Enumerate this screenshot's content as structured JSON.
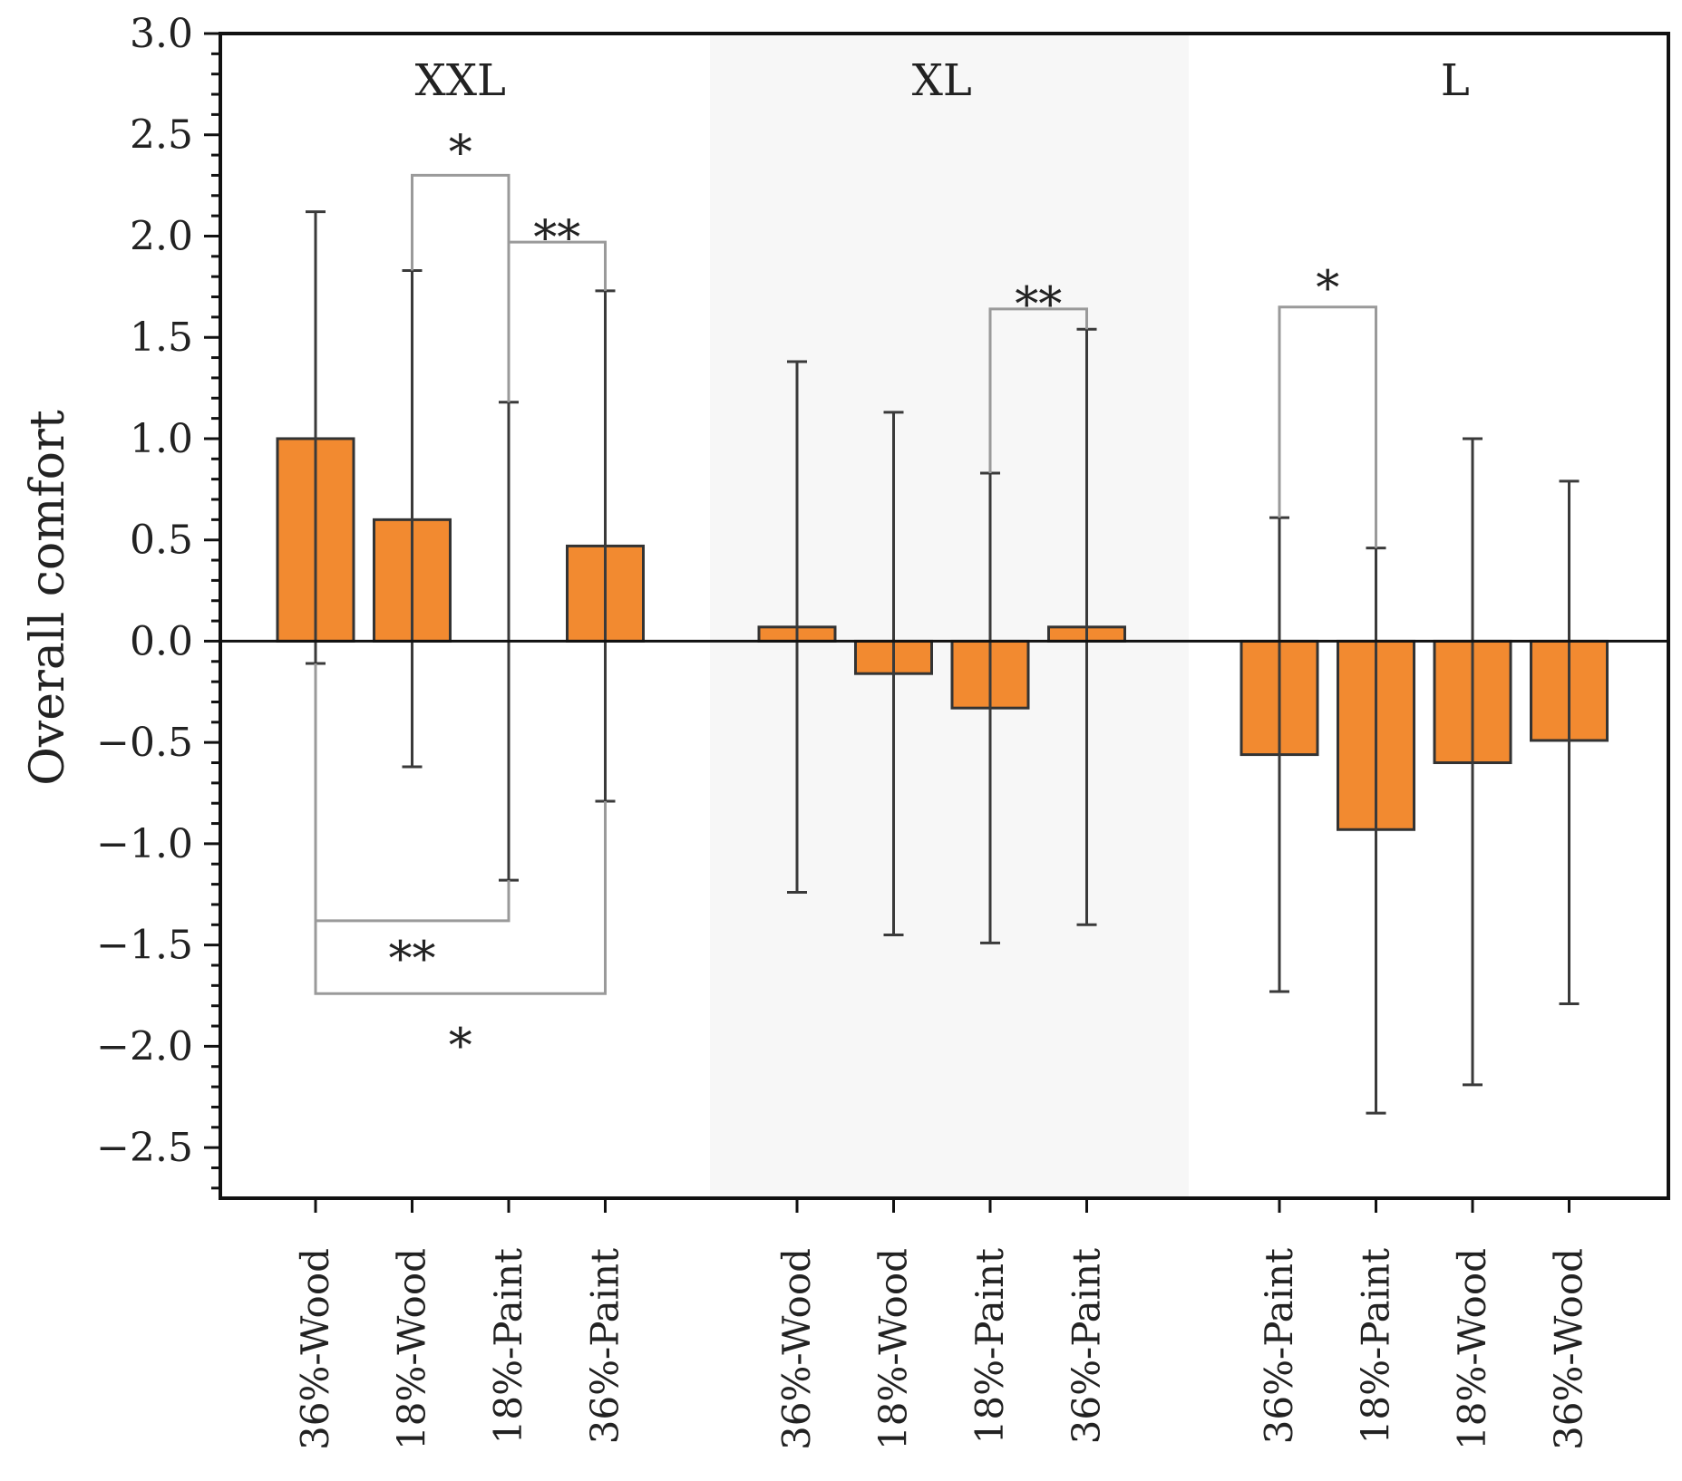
{
  "chart_data": {
    "type": "bar",
    "title": "",
    "xlabel": "",
    "ylabel": "Overall comfort",
    "ylim": [
      -2.75,
      3.0
    ],
    "y_ticks": [
      3.0,
      2.5,
      2.0,
      1.5,
      1.0,
      0.5,
      0.0,
      -0.5,
      -1.0,
      -1.5,
      -2.0,
      -2.5
    ],
    "y_tick_labels": [
      "3.0",
      "2.5",
      "2.0",
      "1.5",
      "1.0",
      "0.5",
      "0.0",
      "−0.5",
      "−1.0",
      "−1.5",
      "−2.0",
      "−2.5"
    ],
    "bar_color": "#f28a30",
    "bar_edge_color": "#333333",
    "shade_color": "#f7f7f7",
    "groups": [
      {
        "name": "XXL",
        "shaded": false,
        "categories": [
          "36%-Wood",
          "18%-Wood",
          "18%-Paint",
          "36%-Paint"
        ],
        "values": [
          1.0,
          0.6,
          0.0,
          0.47
        ],
        "err_low": [
          -0.11,
          -0.62,
          -1.18,
          -0.79
        ],
        "err_high": [
          2.12,
          1.83,
          1.18,
          1.73
        ]
      },
      {
        "name": "XL",
        "shaded": true,
        "categories": [
          "36%-Wood",
          "18%-Wood",
          "18%-Paint",
          "36%-Paint"
        ],
        "values": [
          0.07,
          -0.16,
          -0.33,
          0.07
        ],
        "err_low": [
          -1.24,
          -1.45,
          -1.49,
          -1.4
        ],
        "err_high": [
          1.38,
          1.13,
          0.83,
          1.54
        ]
      },
      {
        "name": "L",
        "shaded": false,
        "categories": [
          "36%-Paint",
          "18%-Paint",
          "18%-Wood",
          "36%-Wood"
        ],
        "values": [
          -0.56,
          -0.93,
          -0.6,
          -0.49
        ],
        "err_low": [
          -1.73,
          -2.33,
          -2.19,
          -1.79
        ],
        "err_high": [
          0.61,
          0.46,
          1.0,
          0.79
        ]
      }
    ],
    "significance": [
      {
        "group": 0,
        "from": 1,
        "to": 2,
        "y": 2.3,
        "label": "*",
        "position": "above",
        "label_y": 2.45
      },
      {
        "group": 0,
        "from": 2,
        "to": 3,
        "y": 1.97,
        "label": "**",
        "position": "above",
        "label_y": 2.03
      },
      {
        "group": 0,
        "from": 0,
        "to": 2,
        "y": -1.38,
        "label": "**",
        "position": "below",
        "label_y": -1.53
      },
      {
        "group": 0,
        "from": 0,
        "to": 3,
        "y": -1.74,
        "label": "*",
        "position": "below",
        "label_y": -1.96
      },
      {
        "group": 1,
        "from": 2,
        "to": 3,
        "y": 1.64,
        "label": "**",
        "position": "above",
        "label_y": 1.7
      },
      {
        "group": 2,
        "from": 0,
        "to": 1,
        "y": 1.65,
        "label": "*",
        "position": "above",
        "label_y": 1.78
      }
    ]
  }
}
